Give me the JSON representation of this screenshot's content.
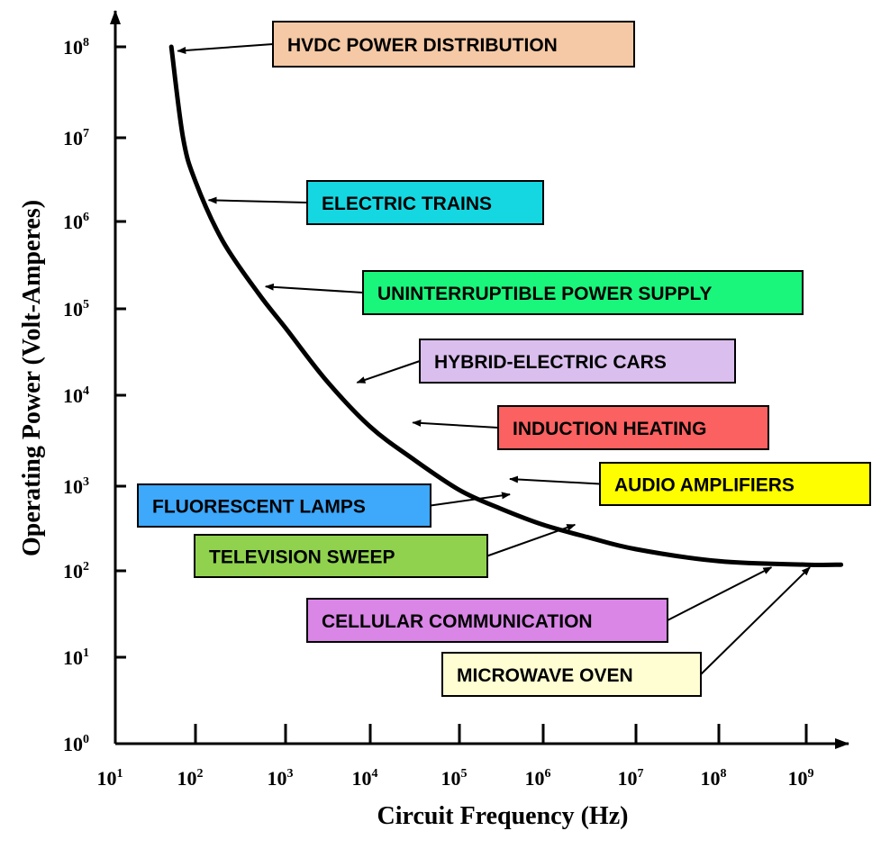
{
  "chart_data": {
    "type": "line",
    "title": "",
    "xlabel": "Circuit Frequency  (Hz)",
    "ylabel": "Operating Power  (Volt-Amperes)",
    "x_scale": "log",
    "y_scale": "log",
    "xlim": [
      10,
      1000000000
    ],
    "ylim": [
      1,
      100000000
    ],
    "x_ticks": [
      {
        "base": "10",
        "exp": "1"
      },
      {
        "base": "10",
        "exp": "2"
      },
      {
        "base": "10",
        "exp": "3"
      },
      {
        "base": "10",
        "exp": "4"
      },
      {
        "base": "10",
        "exp": "5"
      },
      {
        "base": "10",
        "exp": "6"
      },
      {
        "base": "10",
        "exp": "7"
      },
      {
        "base": "10",
        "exp": "8"
      },
      {
        "base": "10",
        "exp": "9"
      }
    ],
    "y_ticks": [
      {
        "base": "10",
        "exp": "0"
      },
      {
        "base": "10",
        "exp": "1"
      },
      {
        "base": "10",
        "exp": "2"
      },
      {
        "base": "10",
        "exp": "3"
      },
      {
        "base": "10",
        "exp": "4"
      },
      {
        "base": "10",
        "exp": "5"
      },
      {
        "base": "10",
        "exp": "6"
      },
      {
        "base": "10",
        "exp": "7"
      },
      {
        "base": "10",
        "exp": "8"
      }
    ],
    "grid": false,
    "series": [
      {
        "x": [
          50,
          70,
          100,
          200,
          500,
          1000,
          3000,
          10000,
          30000,
          100000,
          300000,
          1000000,
          3000000,
          10000000,
          100000000,
          1000000000,
          2500000000
        ],
        "y": [
          100000000,
          10000000,
          3000000,
          600000,
          150000,
          60000,
          15000,
          4500,
          2000,
          900,
          550,
          350,
          250,
          180,
          130,
          118,
          118
        ]
      }
    ],
    "annotations": [
      {
        "text": "HVDC POWER DISTRIBUTION",
        "color": "#f5c9a5",
        "point": [
          60,
          90000000
        ]
      },
      {
        "text": "ELECTRIC TRAINS",
        "color": "#15d7e2",
        "point": [
          140,
          1800000
        ]
      },
      {
        "text": "UNINTERRUPTIBLE POWER SUPPLY",
        "color": "#1af57c",
        "point": [
          600,
          180000
        ]
      },
      {
        "text": "HYBRID-ELECTRIC CARS",
        "color": "#dabfee",
        "point": [
          7000,
          14000
        ]
      },
      {
        "text": "INDUCTION HEATING",
        "color": "#fb6161",
        "point": [
          30000,
          5000
        ]
      },
      {
        "text": "AUDIO AMPLIFIERS",
        "color": "#fefe00",
        "point": [
          400000,
          1200
        ]
      },
      {
        "text": "FLUORESCENT LAMPS",
        "color": "#3ea8fb",
        "point": [
          400000,
          800
        ]
      },
      {
        "text": "TELEVISION SWEEP",
        "color": "#90d24e",
        "point": [
          2200000,
          350
        ]
      },
      {
        "text": "CELLULAR COMMUNICATION",
        "color": "#d986e7",
        "point": [
          400000000,
          110
        ]
      },
      {
        "text": "MICROWAVE OVEN",
        "color": "#fefed2",
        "point": [
          1100000000,
          110
        ]
      }
    ]
  }
}
